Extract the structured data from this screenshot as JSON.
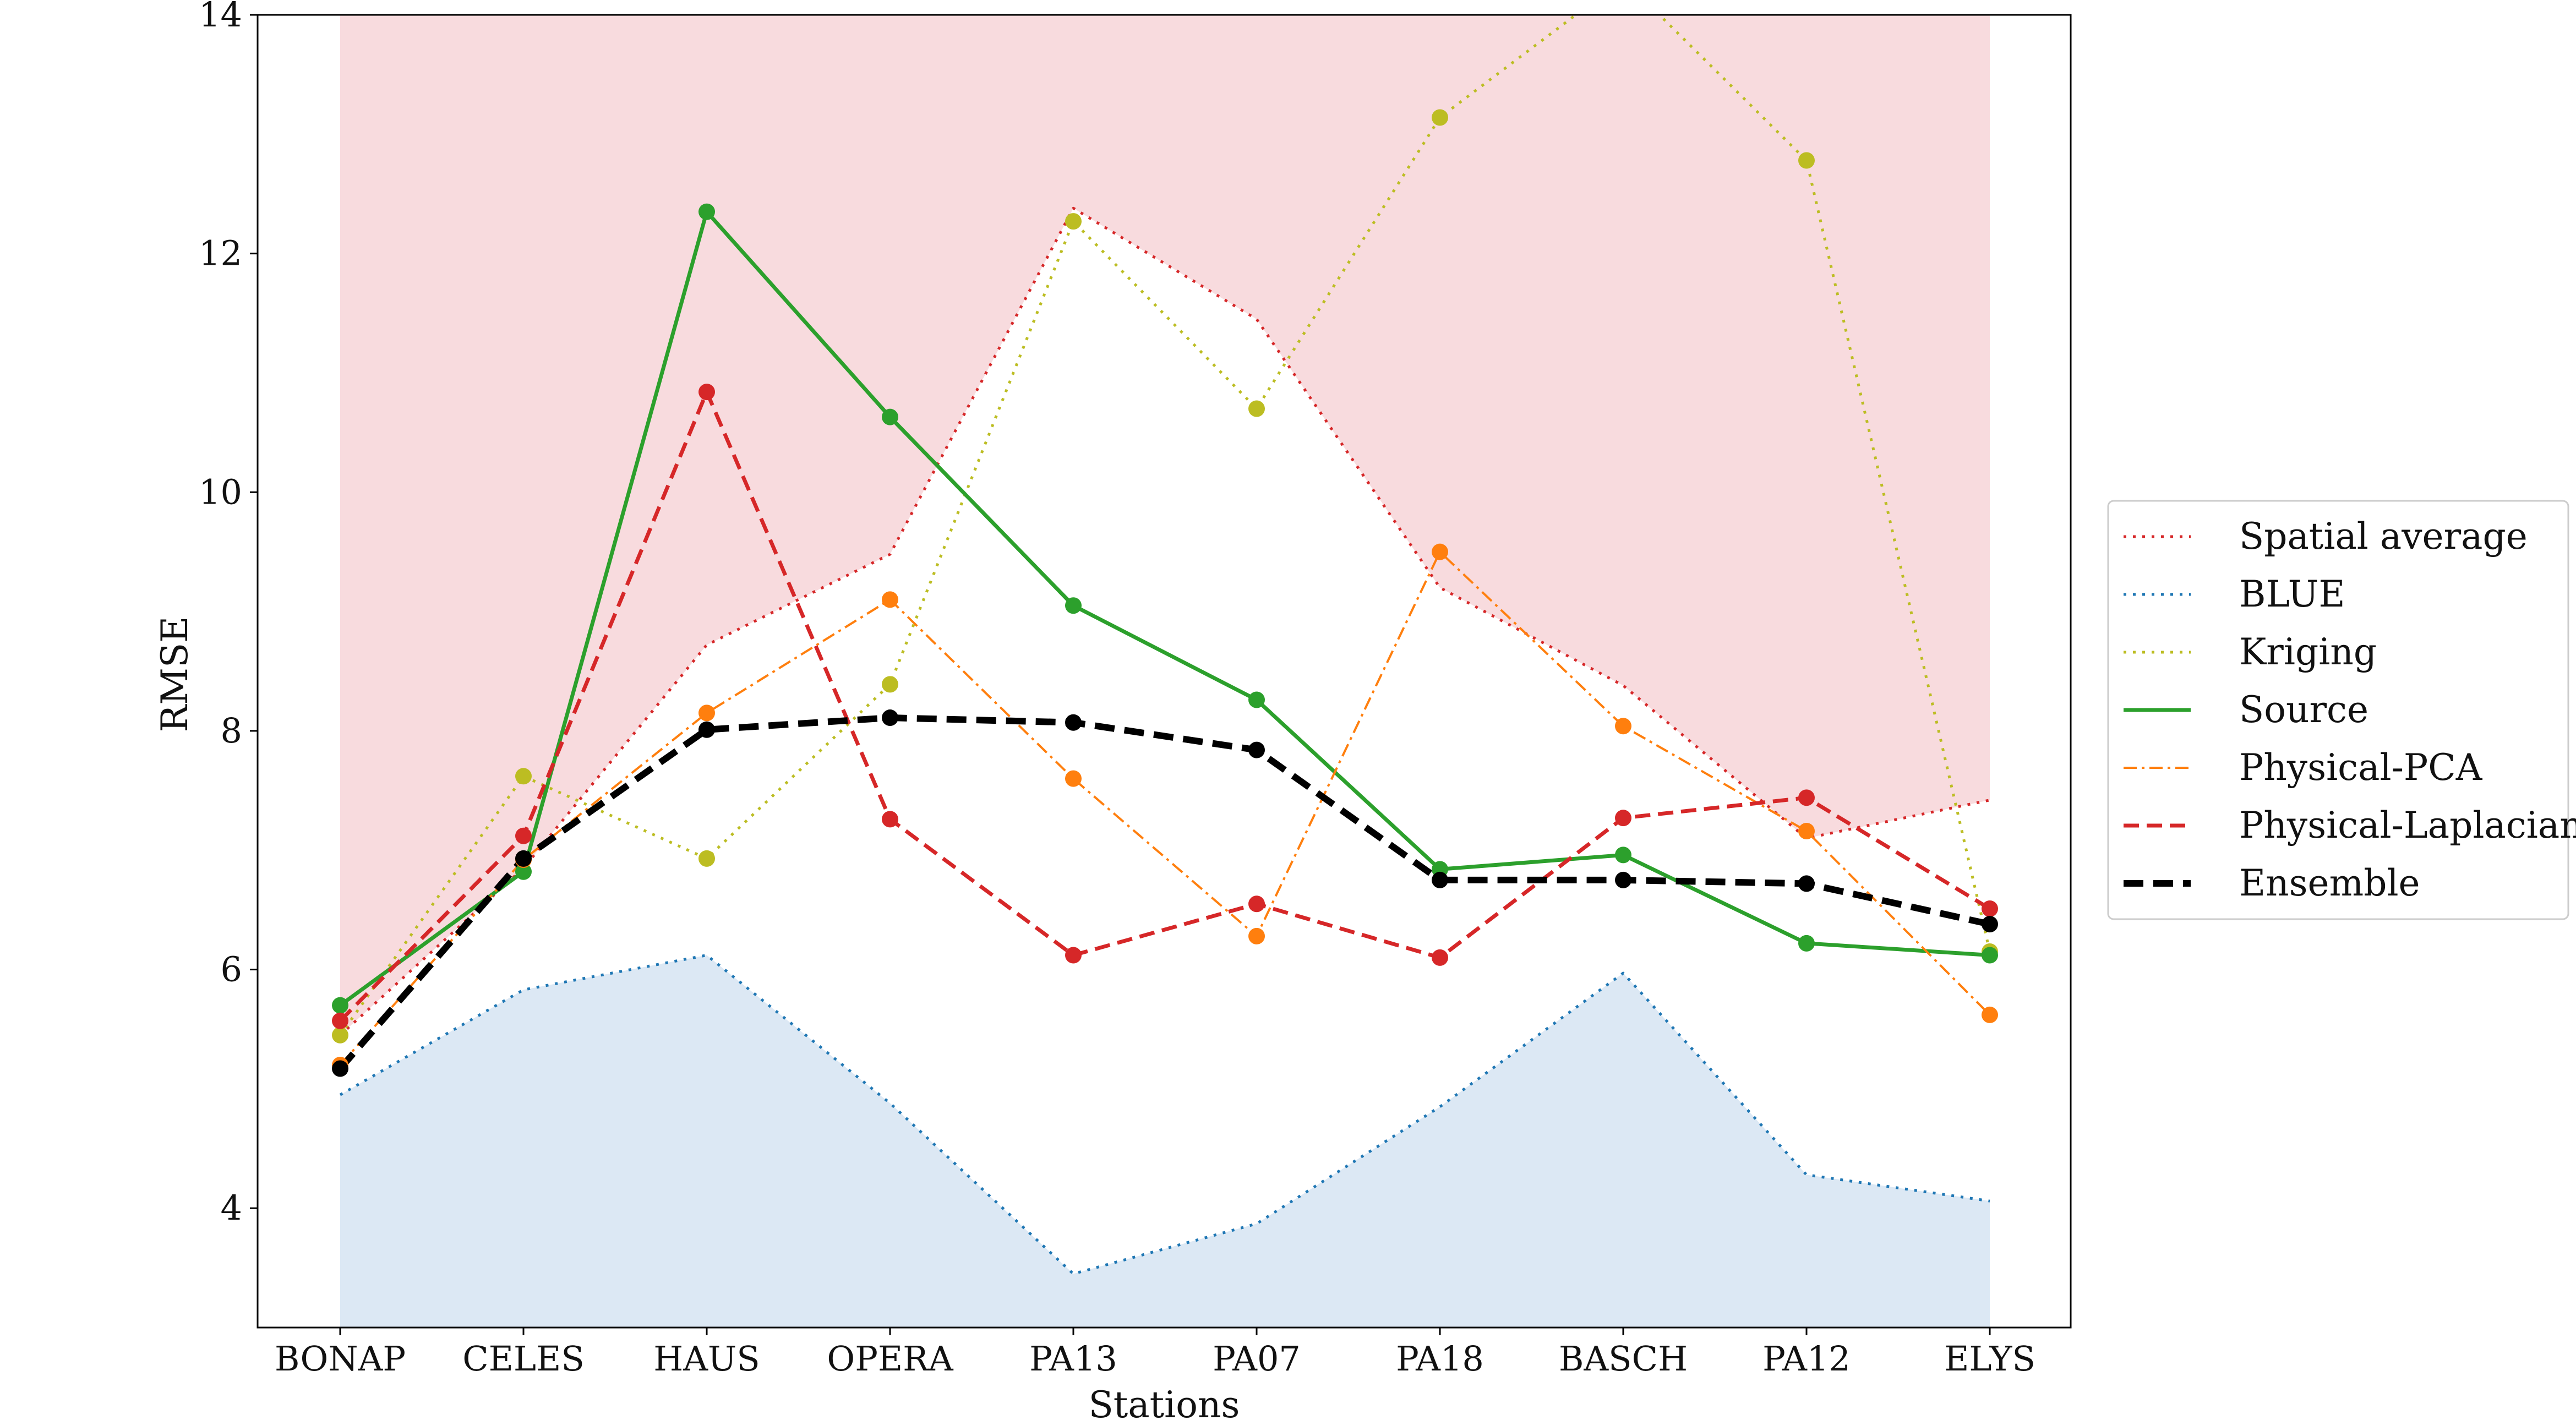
{
  "chart_data": {
    "type": "line",
    "title": "",
    "xlabel": "Stations",
    "ylabel": "RMSE",
    "categories": [
      "BONAP",
      "CELES",
      "HAUS",
      "OPERA",
      "PA13",
      "PA07",
      "PA18",
      "BASCH",
      "PA12",
      "ELYS"
    ],
    "ylim": [
      3,
      14
    ],
    "yticks": [
      4,
      6,
      8,
      10,
      12,
      14
    ],
    "grid": false,
    "legend_position": "right",
    "shaded_regions": [
      {
        "description": "above Spatial average",
        "color": "#f4c7cc"
      },
      {
        "description": "below BLUE",
        "color": "#c9dcee"
      }
    ],
    "series": [
      {
        "name": "Spatial average",
        "color": "#d62728",
        "style": "dotted",
        "markers": false,
        "values": [
          5.45,
          6.85,
          8.72,
          9.48,
          12.38,
          11.45,
          9.2,
          8.38,
          7.1,
          7.42
        ]
      },
      {
        "name": "BLUE",
        "color": "#1f77b4",
        "style": "dotted",
        "markers": false,
        "values": [
          4.95,
          5.83,
          6.12,
          4.88,
          3.45,
          3.87,
          4.85,
          5.97,
          4.28,
          4.06
        ]
      },
      {
        "name": "Kriging",
        "color": "#bcbd22",
        "style": "dotted",
        "markers": true,
        "values": [
          5.45,
          7.62,
          6.93,
          8.39,
          12.27,
          10.7,
          13.14,
          14.3,
          12.78,
          6.15
        ]
      },
      {
        "name": "Source",
        "color": "#2ca02c",
        "style": "solid",
        "markers": true,
        "values": [
          5.7,
          6.82,
          12.35,
          10.63,
          9.05,
          8.26,
          6.84,
          6.96,
          6.22,
          6.12
        ]
      },
      {
        "name": "Physical-PCA",
        "color": "#ff7f0e",
        "style": "dashdot",
        "markers": true,
        "values": [
          5.2,
          6.92,
          8.15,
          9.1,
          7.6,
          6.28,
          9.5,
          8.04,
          7.16,
          5.62
        ]
      },
      {
        "name": "Physical-Laplacian",
        "color": "#d62728",
        "style": "dashed",
        "markers": true,
        "values": [
          5.57,
          7.12,
          10.84,
          7.26,
          6.12,
          6.55,
          6.1,
          7.27,
          7.44,
          6.51
        ]
      },
      {
        "name": "Ensemble",
        "color": "#000000",
        "style": "dashed-bold",
        "markers": true,
        "values": [
          5.17,
          6.93,
          8.01,
          8.11,
          8.07,
          7.84,
          6.75,
          6.75,
          6.72,
          6.38
        ]
      }
    ]
  }
}
